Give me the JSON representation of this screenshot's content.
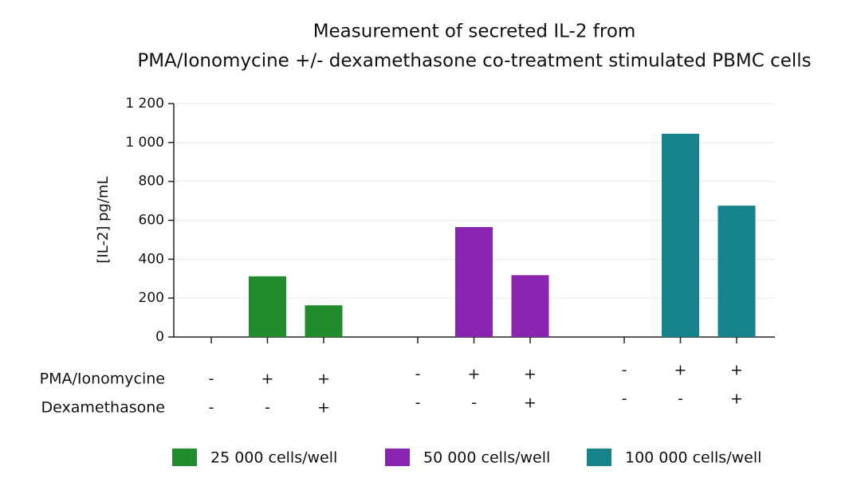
{
  "chart_data": {
    "type": "bar",
    "title": [
      "Measurement of secreted IL-2 from",
      "PMA/Ionomycine +/- dexamethasone co-treatment stimulated PBMC cells"
    ],
    "y_label": "[IL-2] pg/mL",
    "ylim": [
      0,
      1200
    ],
    "yticks": [
      0,
      200,
      400,
      600,
      800,
      {
        "value": 1000,
        "label": "1 000"
      },
      {
        "value": 1200,
        "label": "1 200"
      }
    ],
    "grid": true,
    "rows": [
      {
        "label": "PMA/Ionomycine",
        "signs": [
          "-",
          "+",
          "+"
        ]
      },
      {
        "label": "Dexamethasone",
        "signs": [
          "-",
          "-",
          "+"
        ]
      }
    ],
    "series": [
      {
        "name": "25 000 cells/well",
        "color": "#228b2d",
        "values": [
          0,
          312,
          163
        ]
      },
      {
        "name": "50 000 cells/well",
        "color": "#8a25b1",
        "values": [
          0,
          565,
          318
        ]
      },
      {
        "name": "100 000 cells/well",
        "color": "#16838a",
        "values": [
          0,
          1045,
          675
        ]
      }
    ],
    "legend": "bottom"
  }
}
